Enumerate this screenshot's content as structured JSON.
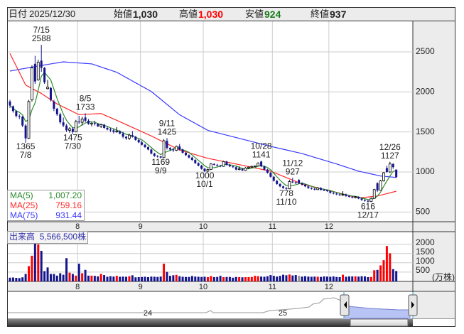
{
  "header": {
    "date_label": "日付",
    "date": "2025/12/30",
    "open_label": "始値",
    "open": "1,030",
    "high_label": "高値",
    "high": "1,030",
    "low_label": "安値",
    "low": "924",
    "close_label": "終値",
    "close": "937"
  },
  "ma_legend": [
    {
      "label": "MA(5)",
      "value": "1,007.20",
      "color": "#2e8b2e"
    },
    {
      "label": "MA(25)",
      "value": "759.16",
      "color": "#ff2a2a"
    },
    {
      "label": "MA(75)",
      "value": "931.44",
      "color": "#3a3aff"
    }
  ],
  "volume_legend": {
    "label": "出来高",
    "value": "5,566,500株"
  },
  "navigator": {
    "labels": [
      "24",
      "25"
    ]
  },
  "colors": {
    "down_candle": "#14148c",
    "up_candle": "#ffffff",
    "up_volume": "#ff0000",
    "down_volume": "#14148c",
    "flat_volume": "#999999",
    "grid": "#cccccc",
    "panel": "#ececec",
    "selection": "#b8c4f4"
  },
  "chart_data": {
    "type": "candlestick",
    "price_axis": {
      "ticks": [
        "2500",
        "2000",
        "1500",
        "1000",
        "500"
      ],
      "range": [
        430,
        2860
      ]
    },
    "volume_axis": {
      "ticks": [
        "2000",
        "1500",
        "1000",
        "500"
      ],
      "unit": "(万株)"
    },
    "months": [
      {
        "label": "8",
        "date": "8/1"
      },
      {
        "label": "9",
        "date": "9/1"
      },
      {
        "label": "10",
        "date": "10/1"
      },
      {
        "label": "11",
        "date": "11/4"
      },
      {
        "label": "12",
        "date": "12/1"
      }
    ],
    "grid": true,
    "candles_fields": [
      "date",
      "open",
      "high",
      "low",
      "close",
      "volume_10k"
    ],
    "candles": [
      [
        "7/1",
        1880,
        1900,
        1800,
        1830,
        200
      ],
      [
        "7/2",
        1820,
        1830,
        1740,
        1760,
        210
      ],
      [
        "7/3",
        1760,
        1770,
        1680,
        1700,
        190
      ],
      [
        "7/4",
        1700,
        1720,
        1660,
        1690,
        180
      ],
      [
        "7/7",
        1690,
        1700,
        1560,
        1580,
        220
      ],
      [
        "7/8",
        1580,
        1600,
        1365,
        1420,
        400
      ],
      [
        "7/9",
        1420,
        1900,
        1410,
        1880,
        820
      ],
      [
        "7/10",
        1900,
        2330,
        1880,
        2300,
        1380
      ],
      [
        "7/11",
        2350,
        2450,
        2100,
        2130,
        2220
      ],
      [
        "7/14",
        2150,
        2400,
        2140,
        2370,
        1990
      ],
      [
        "7/15",
        2390,
        2588,
        2250,
        2300,
        1640
      ],
      [
        "7/16",
        2300,
        2310,
        2100,
        2120,
        550
      ],
      [
        "7/17",
        2040,
        2150,
        2030,
        2060,
        750
      ],
      [
        "7/18",
        2050,
        2060,
        1880,
        1900,
        400
      ],
      [
        "7/22",
        1880,
        1900,
        1760,
        1790,
        400
      ],
      [
        "7/23",
        1790,
        1800,
        1700,
        1720,
        310
      ],
      [
        "7/24",
        1720,
        1740,
        1600,
        1620,
        440
      ],
      [
        "7/25",
        1620,
        1680,
        1560,
        1580,
        360
      ],
      [
        "7/28",
        1580,
        1600,
        1500,
        1520,
        1250
      ],
      [
        "7/29",
        1520,
        1560,
        1490,
        1540,
        470
      ],
      [
        "7/30",
        1540,
        1560,
        1475,
        1500,
        400
      ],
      [
        "7/31",
        1500,
        1650,
        1495,
        1630,
        310
      ],
      [
        "8/1",
        1630,
        1700,
        1600,
        1620,
        950
      ],
      [
        "8/4",
        1620,
        1690,
        1580,
        1660,
        440
      ],
      [
        "8/5",
        1680,
        1733,
        1620,
        1640,
        620
      ],
      [
        "8/6",
        1640,
        1660,
        1590,
        1600,
        310
      ],
      [
        "8/7",
        1600,
        1620,
        1570,
        1610,
        310
      ],
      [
        "8/8",
        1610,
        1640,
        1580,
        1600,
        300
      ],
      [
        "8/12",
        1600,
        1610,
        1560,
        1570,
        270
      ],
      [
        "8/13",
        1570,
        1600,
        1550,
        1590,
        400
      ],
      [
        "8/14",
        1590,
        1600,
        1540,
        1550,
        340
      ],
      [
        "8/15",
        1550,
        1570,
        1520,
        1530,
        250
      ],
      [
        "8/18",
        1530,
        1550,
        1500,
        1520,
        280
      ],
      [
        "8/19",
        1520,
        1540,
        1480,
        1500,
        260
      ],
      [
        "8/20",
        1500,
        1560,
        1490,
        1510,
        300
      ],
      [
        "8/21",
        1510,
        1520,
        1470,
        1480,
        250
      ],
      [
        "8/22",
        1480,
        1500,
        1420,
        1440,
        260
      ],
      [
        "8/25",
        1440,
        1450,
        1400,
        1420,
        250
      ],
      [
        "8/26",
        1420,
        1480,
        1400,
        1460,
        280
      ],
      [
        "8/27",
        1460,
        1510,
        1430,
        1440,
        330
      ],
      [
        "8/28",
        1440,
        1450,
        1390,
        1400,
        220
      ],
      [
        "8/29",
        1400,
        1420,
        1360,
        1370,
        230
      ],
      [
        "9/1",
        1370,
        1390,
        1330,
        1340,
        240
      ],
      [
        "9/2",
        1340,
        1350,
        1300,
        1310,
        250
      ],
      [
        "9/3",
        1310,
        1320,
        1270,
        1280,
        230
      ],
      [
        "9/4",
        1280,
        1290,
        1220,
        1230,
        260
      ],
      [
        "9/5",
        1230,
        1240,
        1190,
        1200,
        250
      ],
      [
        "9/8",
        1200,
        1210,
        1180,
        1195,
        240
      ],
      [
        "9/9",
        1195,
        1200,
        1169,
        1180,
        260
      ],
      [
        "9/10",
        1180,
        1410,
        1175,
        1390,
        950
      ],
      [
        "9/11",
        1390,
        1425,
        1280,
        1300,
        510
      ],
      [
        "9/12",
        1300,
        1310,
        1260,
        1280,
        300
      ],
      [
        "9/16",
        1280,
        1300,
        1250,
        1270,
        330
      ],
      [
        "9/17",
        1270,
        1330,
        1260,
        1320,
        350
      ],
      [
        "9/18",
        1320,
        1350,
        1270,
        1280,
        280
      ],
      [
        "9/19",
        1280,
        1290,
        1230,
        1240,
        250
      ],
      [
        "9/22",
        1240,
        1250,
        1200,
        1210,
        240
      ],
      [
        "9/24",
        1210,
        1220,
        1170,
        1180,
        240
      ],
      [
        "9/25",
        1180,
        1190,
        1140,
        1150,
        290
      ],
      [
        "9/26",
        1150,
        1160,
        1100,
        1110,
        260
      ],
      [
        "9/29",
        1110,
        1120,
        1070,
        1080,
        250
      ],
      [
        "9/30",
        1080,
        1090,
        1030,
        1040,
        240
      ],
      [
        "10/1",
        1040,
        1050,
        1000,
        1010,
        250
      ],
      [
        "10/2",
        1010,
        1040,
        1000,
        1030,
        230
      ],
      [
        "10/3",
        1030,
        1110,
        1025,
        1100,
        290
      ],
      [
        "10/6",
        1100,
        1110,
        1080,
        1090,
        230
      ],
      [
        "10/7",
        1090,
        1100,
        1070,
        1080,
        240
      ],
      [
        "10/8",
        1080,
        1090,
        1060,
        1070,
        300
      ],
      [
        "10/9",
        1070,
        1140,
        1065,
        1130,
        230
      ],
      [
        "10/10",
        1130,
        1140,
        1080,
        1090,
        240
      ],
      [
        "10/14",
        1090,
        1100,
        1060,
        1070,
        240
      ],
      [
        "10/15",
        1070,
        1080,
        1050,
        1060,
        200
      ],
      [
        "10/16",
        1060,
        1070,
        1020,
        1030,
        240
      ],
      [
        "10/17",
        1030,
        1070,
        1020,
        1040,
        230
      ],
      [
        "10/20",
        1040,
        1050,
        1010,
        1020,
        220
      ],
      [
        "10/21",
        1020,
        1060,
        1015,
        1050,
        230
      ],
      [
        "10/22",
        1050,
        1070,
        1040,
        1060,
        230
      ],
      [
        "10/23",
        1060,
        1080,
        1050,
        1070,
        240
      ],
      [
        "10/24",
        1070,
        1080,
        1060,
        1075,
        300
      ],
      [
        "10/27",
        1075,
        1120,
        1070,
        1110,
        280
      ],
      [
        "10/28",
        1130,
        1141,
        1060,
        1070,
        260
      ],
      [
        "10/29",
        1070,
        1080,
        1020,
        1030,
        250
      ],
      [
        "10/30",
        1030,
        1040,
        980,
        990,
        280
      ],
      [
        "10/31",
        990,
        1000,
        930,
        940,
        340
      ],
      [
        "11/4",
        940,
        950,
        880,
        890,
        300
      ],
      [
        "11/5",
        890,
        900,
        840,
        850,
        260
      ],
      [
        "11/6",
        850,
        860,
        810,
        820,
        300
      ],
      [
        "11/7",
        820,
        830,
        790,
        800,
        360
      ],
      [
        "11/10",
        800,
        810,
        778,
        790,
        330
      ],
      [
        "11/11",
        790,
        900,
        785,
        880,
        370
      ],
      [
        "11/12",
        880,
        927,
        860,
        870,
        320
      ],
      [
        "11/13",
        870,
        880,
        850,
        860,
        340
      ],
      [
        "11/14",
        900,
        910,
        850,
        860,
        300
      ],
      [
        "11/17",
        860,
        870,
        830,
        840,
        260
      ],
      [
        "11/18",
        840,
        850,
        810,
        820,
        280
      ],
      [
        "11/19",
        820,
        830,
        790,
        800,
        260
      ],
      [
        "11/20",
        800,
        810,
        780,
        790,
        250
      ],
      [
        "11/21",
        790,
        800,
        770,
        780,
        260
      ],
      [
        "11/25",
        780,
        810,
        775,
        800,
        250
      ],
      [
        "11/26",
        800,
        810,
        770,
        775,
        240
      ],
      [
        "11/27",
        775,
        790,
        760,
        770,
        270
      ],
      [
        "11/28",
        770,
        780,
        750,
        760,
        260
      ],
      [
        "12/1",
        760,
        770,
        730,
        740,
        250
      ],
      [
        "12/2",
        740,
        750,
        720,
        730,
        270
      ],
      [
        "12/3",
        730,
        740,
        710,
        720,
        240
      ],
      [
        "12/4",
        720,
        730,
        700,
        710,
        230
      ],
      [
        "12/5",
        710,
        760,
        700,
        720,
        360
      ],
      [
        "12/8",
        720,
        730,
        690,
        700,
        250
      ],
      [
        "12/9",
        700,
        710,
        680,
        690,
        270
      ],
      [
        "12/10",
        690,
        700,
        670,
        680,
        270
      ],
      [
        "12/11",
        680,
        700,
        670,
        690,
        270
      ],
      [
        "12/12",
        690,
        695,
        660,
        670,
        260
      ],
      [
        "12/15",
        670,
        680,
        640,
        650,
        280
      ],
      [
        "12/16",
        650,
        660,
        630,
        640,
        270
      ],
      [
        "12/17",
        640,
        650,
        616,
        630,
        230
      ],
      [
        "12/18",
        630,
        680,
        625,
        670,
        240
      ],
      [
        "12/19",
        670,
        790,
        665,
        780,
        600
      ],
      [
        "12/22",
        860,
        870,
        750,
        770,
        620
      ],
      [
        "12/23",
        770,
        900,
        765,
        890,
        860
      ],
      [
        "12/24",
        890,
        1000,
        880,
        990,
        1140
      ],
      [
        "12/25",
        1050,
        1080,
        990,
        1000,
        1900
      ],
      [
        "12/26",
        1000,
        1127,
        990,
        1100,
        1510
      ],
      [
        "12/29",
        1100,
        1110,
        1040,
        1060,
        660
      ],
      [
        "12/30",
        1030,
        1030,
        924,
        937,
        557
      ]
    ],
    "ma25": [
      [
        "7/1",
        2480
      ],
      [
        "7/8",
        2085
      ],
      [
        "7/15",
        1980
      ],
      [
        "7/23",
        1850
      ],
      [
        "8/1",
        1715
      ],
      [
        "8/13",
        1730
      ],
      [
        "8/20",
        1645
      ],
      [
        "9/4",
        1450
      ],
      [
        "9/18",
        1275
      ],
      [
        "10/2",
        1170
      ],
      [
        "10/16",
        1100
      ],
      [
        "10/31",
        1010
      ],
      [
        "11/17",
        850
      ],
      [
        "12/3",
        745
      ],
      [
        "12/12",
        675
      ],
      [
        "12/22",
        700
      ],
      [
        "12/30",
        759.16
      ]
    ],
    "ma75": [
      [
        "7/1",
        2260
      ],
      [
        "7/15",
        2330
      ],
      [
        "7/25",
        2375
      ],
      [
        "8/7",
        2350
      ],
      [
        "8/20",
        2245
      ],
      [
        "9/4",
        2005
      ],
      [
        "9/18",
        1715
      ],
      [
        "10/2",
        1520
      ],
      [
        "10/16",
        1430
      ],
      [
        "10/31",
        1320
      ],
      [
        "11/17",
        1230
      ],
      [
        "12/3",
        1100
      ],
      [
        "12/12",
        1010
      ],
      [
        "12/23",
        950
      ],
      [
        "12/30",
        931.44
      ]
    ],
    "annotations": [
      {
        "date": "7/15",
        "value": "2588",
        "position": "above"
      },
      {
        "date": "7/8",
        "value": "1365",
        "position": "below"
      },
      {
        "date": "8/5",
        "value": "1733",
        "position": "above"
      },
      {
        "date": "7/30",
        "value": "1475",
        "position": "below"
      },
      {
        "date": "9/11",
        "value": "1425",
        "position": "above"
      },
      {
        "date": "9/9",
        "value": "1169",
        "position": "below"
      },
      {
        "date": "10/1",
        "value": "1000",
        "position": "below"
      },
      {
        "date": "10/28",
        "value": "1141",
        "position": "above"
      },
      {
        "date": "11/12",
        "value": "927",
        "position": "above"
      },
      {
        "date": "11/10",
        "value": "778",
        "position": "below"
      },
      {
        "date": "12/17",
        "value": "616",
        "position": "below"
      },
      {
        "date": "12/26",
        "value": "1127",
        "position": "above"
      }
    ]
  }
}
